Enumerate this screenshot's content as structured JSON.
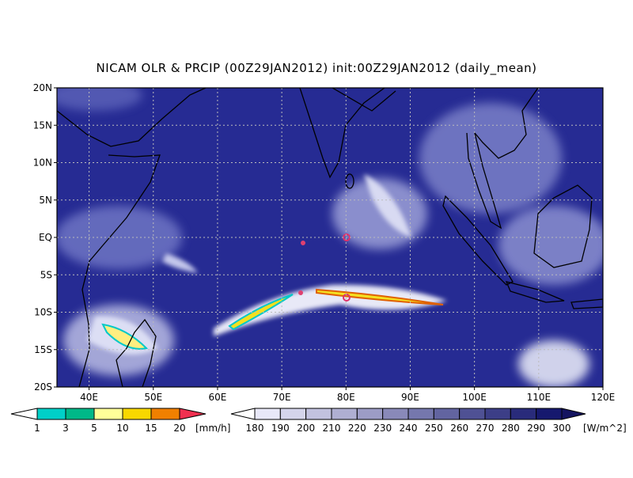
{
  "title": "NICAM OLR & PRCIP (00Z29JAN2012) init:00Z29JAN2012 (daily_mean)",
  "lat_labels": [
    "20N",
    "15N",
    "10N",
    "5N",
    "EQ",
    "5S",
    "10S",
    "15S",
    "20S"
  ],
  "lon_labels": [
    "40E",
    "50E",
    "60E",
    "70E",
    "80E",
    "90E",
    "100E",
    "110E",
    "120E"
  ],
  "precip_colorbar": {
    "labels": [
      1,
      3,
      5,
      10,
      15,
      20
    ],
    "unit": "[mm/h]"
  },
  "olr_colorbar": {
    "labels": [
      180,
      190,
      200,
      210,
      220,
      230,
      240,
      250,
      260,
      270,
      280,
      290,
      300
    ],
    "unit": "[W/m^2]"
  }
}
